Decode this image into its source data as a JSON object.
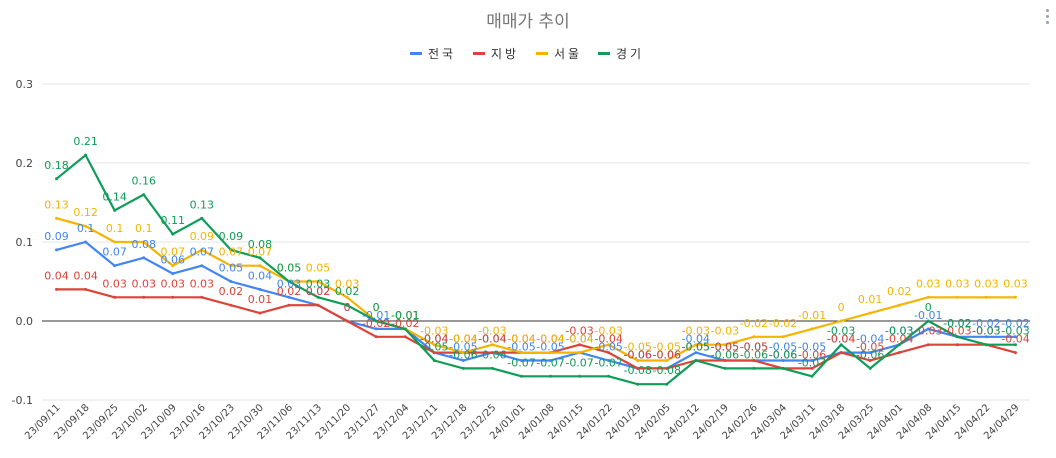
{
  "chart_data": {
    "type": "line",
    "title": "매매가 추이",
    "xlabel": "",
    "ylabel": "",
    "ylim": [
      -0.1,
      0.3
    ],
    "yticks": [
      "0.3",
      "0.2",
      "0.1",
      "0.0",
      "-0.1"
    ],
    "grid": true,
    "legend_position": "top",
    "categories": [
      "23/09/11",
      "23/09/18",
      "23/09/25",
      "23/10/02",
      "23/10/09",
      "23/10/16",
      "23/10/23",
      "23/10/30",
      "23/11/06",
      "23/11/13",
      "23/11/20",
      "23/11/27",
      "23/12/04",
      "23/12/11",
      "23/12/18",
      "23/12/25",
      "24/01/01",
      "24/01/08",
      "24/01/15",
      "24/01/22",
      "24/01/29",
      "24/02/05",
      "24/02/12",
      "24/02/19",
      "24/02/26",
      "24/03/04",
      "24/03/11",
      "24/03/18",
      "24/03/25",
      "24/04/01",
      "24/04/08",
      "24/04/15",
      "24/04/22",
      "24/04/29"
    ],
    "series": [
      {
        "name": "전국",
        "color": "#4285f4",
        "values": [
          0.09,
          0.1,
          0.07,
          0.08,
          0.06,
          0.07,
          0.05,
          0.04,
          0.03,
          0.02,
          0,
          -0.01,
          -0.01,
          -0.04,
          -0.05,
          -0.04,
          -0.05,
          -0.05,
          -0.04,
          -0.05,
          -0.06,
          -0.06,
          -0.04,
          -0.05,
          -0.05,
          -0.05,
          -0.05,
          -0.04,
          -0.04,
          -0.03,
          -0.01,
          -0.02,
          -0.02,
          -0.02
        ]
      },
      {
        "name": "지방",
        "color": "#db4437",
        "values": [
          0.04,
          0.04,
          0.03,
          0.03,
          0.03,
          0.03,
          0.02,
          0.01,
          0.02,
          0.02,
          0,
          -0.02,
          -0.02,
          -0.04,
          -0.04,
          -0.04,
          -0.04,
          -0.04,
          -0.03,
          -0.04,
          -0.06,
          -0.06,
          -0.05,
          -0.05,
          -0.05,
          -0.06,
          -0.06,
          -0.04,
          -0.05,
          -0.04,
          -0.03,
          -0.03,
          -0.03,
          -0.04
        ]
      },
      {
        "name": "서울",
        "color": "#f4b400",
        "values": [
          0.13,
          0.12,
          0.1,
          0.1,
          0.07,
          0.09,
          0.07,
          0.07,
          0.05,
          0.05,
          0.03,
          0,
          -0.01,
          -0.03,
          -0.04,
          -0.03,
          -0.04,
          -0.04,
          -0.04,
          -0.03,
          -0.05,
          -0.05,
          -0.03,
          -0.03,
          -0.02,
          -0.02,
          -0.01,
          0,
          0.01,
          0.02,
          0.03,
          0.03,
          0.03,
          0.03
        ]
      },
      {
        "name": "경기",
        "color": "#0f9d58",
        "values": [
          0.18,
          0.21,
          0.14,
          0.16,
          0.11,
          0.13,
          0.09,
          0.08,
          0.05,
          0.03,
          0.02,
          0,
          -0.01,
          -0.05,
          -0.06,
          -0.06,
          -0.07,
          -0.07,
          -0.07,
          -0.07,
          -0.08,
          -0.08,
          -0.05,
          -0.06,
          -0.06,
          -0.06,
          -0.07,
          -0.03,
          -0.06,
          -0.03,
          0,
          -0.02,
          -0.03,
          -0.03
        ]
      }
    ]
  }
}
